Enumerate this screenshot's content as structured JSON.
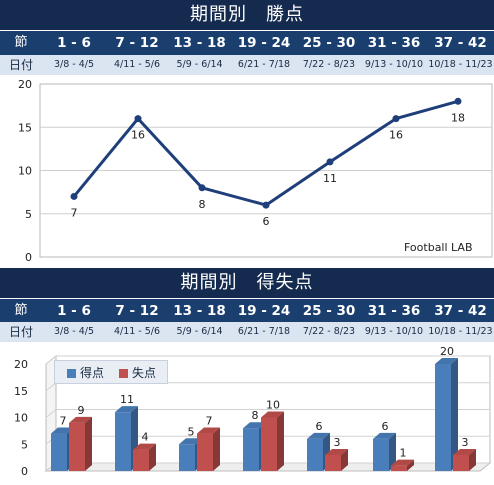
{
  "periods": [
    "1 - 6",
    "7 - 12",
    "13 - 18",
    "19 - 24",
    "25 - 30",
    "31 - 36",
    "37 - 42"
  ],
  "dates": [
    "3/8 - 4/5",
    "4/11 - 5/6",
    "5/9 - 6/14",
    "6/21 - 7/18",
    "7/22 - 8/23",
    "9/13 - 10/10",
    "10/18 - 11/23"
  ],
  "labels": {
    "section": "節",
    "date": "日付"
  },
  "chart1": {
    "title": "期間別　勝点",
    "watermark": "Football LAB"
  },
  "chart2": {
    "title": "期間別　得失点",
    "legend": [
      "得点",
      "失点"
    ]
  },
  "colors": {
    "header_dark": "#152a4f",
    "header_blue": "#1a3e6e",
    "date_row": "#dbe4f1",
    "line": "#1f3f7a",
    "goals_for": "#4a7ebb",
    "goals_against": "#c0504d"
  },
  "chart_data": [
    {
      "type": "line",
      "title": "期間別　勝点",
      "categories": [
        "1 - 6",
        "7 - 12",
        "13 - 18",
        "19 - 24",
        "25 - 30",
        "31 - 36",
        "37 - 42"
      ],
      "values": [
        7,
        16,
        8,
        6,
        11,
        16,
        18
      ],
      "ylim": [
        0,
        20
      ],
      "yticks": [
        0,
        5,
        10,
        15,
        20
      ],
      "grid": true
    },
    {
      "type": "bar",
      "title": "期間別　得失点",
      "categories": [
        "1 - 6",
        "7 - 12",
        "13 - 18",
        "19 - 24",
        "25 - 30",
        "31 - 36",
        "37 - 42"
      ],
      "series": [
        {
          "name": "得点",
          "values": [
            7,
            11,
            5,
            8,
            6,
            6,
            20
          ]
        },
        {
          "name": "失点",
          "values": [
            9,
            4,
            7,
            10,
            3,
            1,
            3
          ]
        }
      ],
      "ylim": [
        0,
        20
      ],
      "yticks": [
        0,
        5,
        10,
        15,
        20
      ],
      "legend": "top-left"
    }
  ]
}
